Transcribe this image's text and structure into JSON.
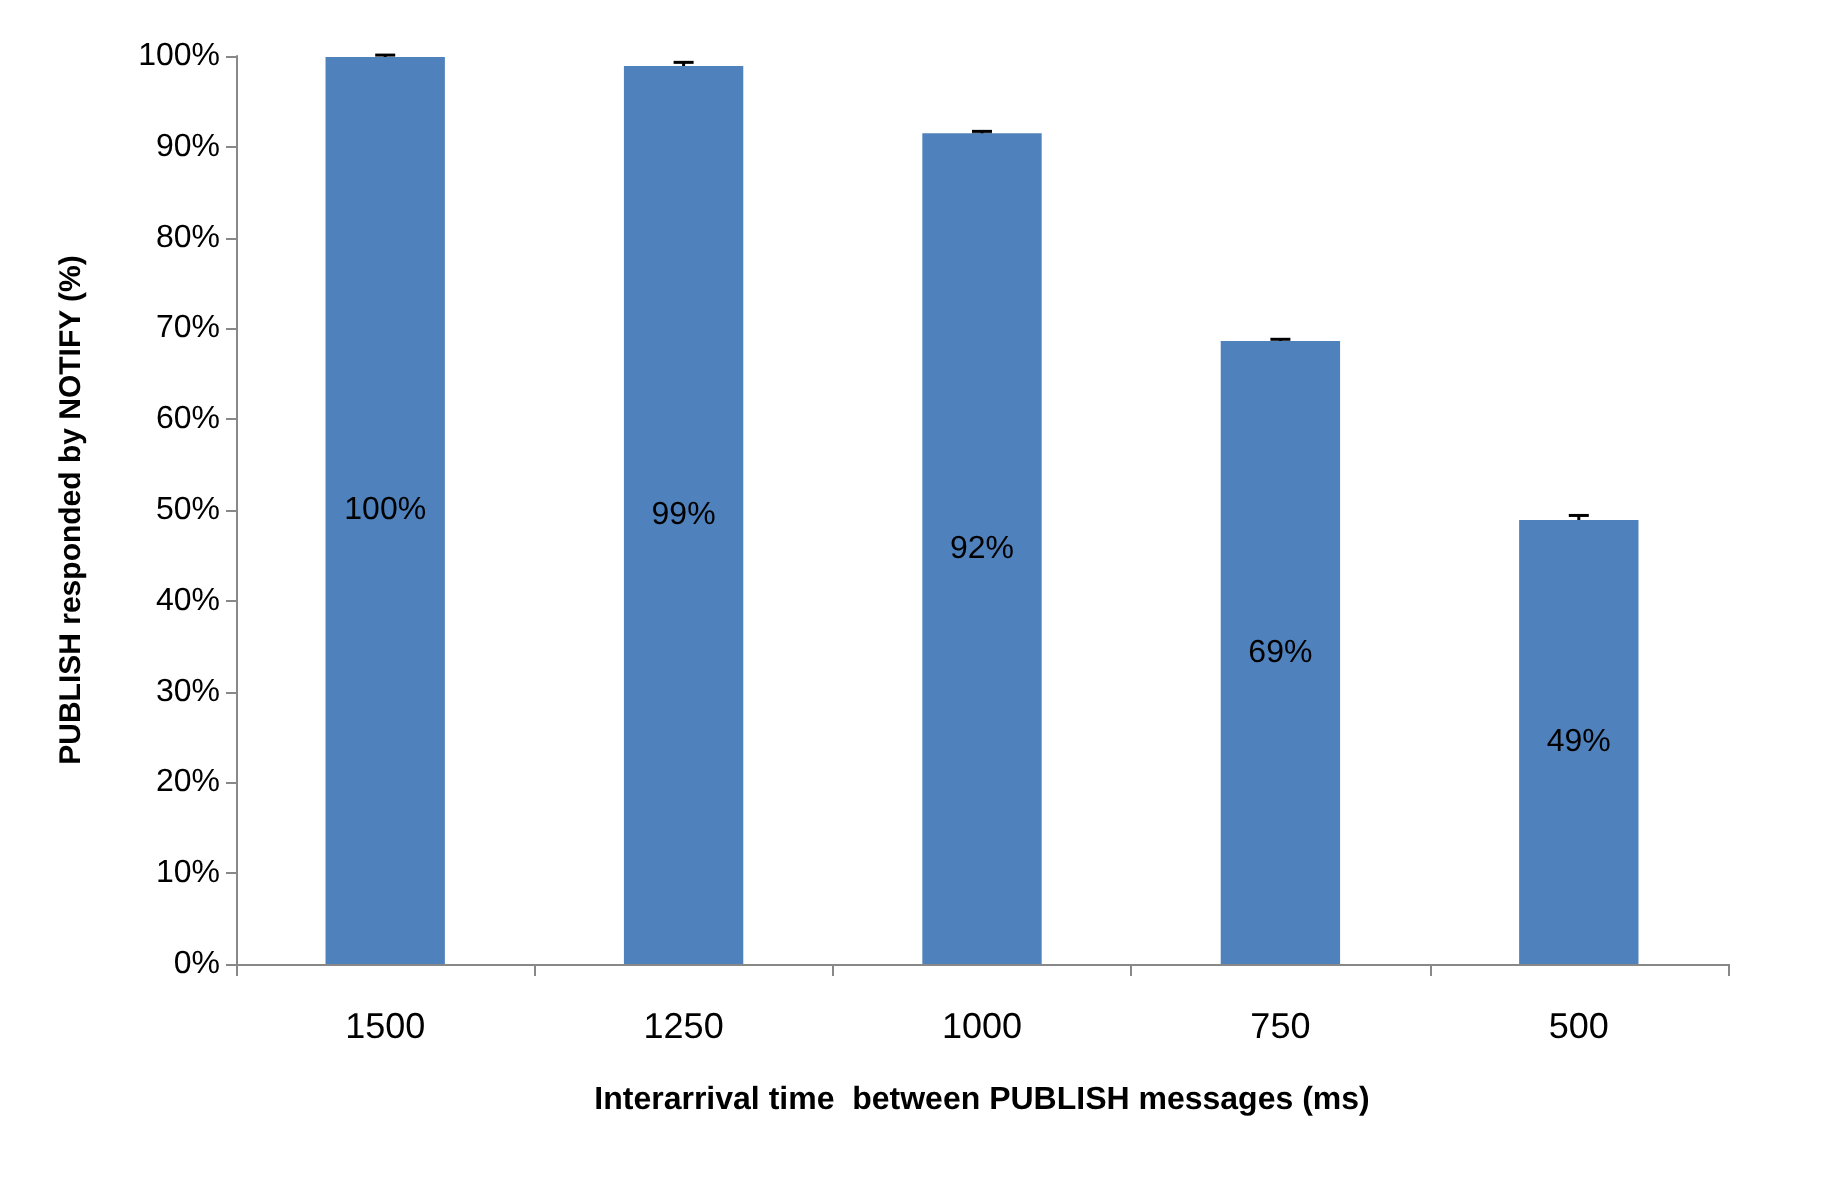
{
  "chart_data": {
    "type": "bar",
    "xlabel": "Interarrival time  between PUBLISH messages (ms)",
    "ylabel": "PUBLISH responded by NOTIFY (%)",
    "categories": [
      "1500",
      "1250",
      "1000",
      "750",
      "500"
    ],
    "values": [
      99.9,
      98.9,
      91.5,
      68.6,
      48.9
    ],
    "errors": [
      0.2,
      0.4,
      0.2,
      0.2,
      0.5
    ],
    "value_labels": [
      "100%",
      "99%",
      "92%",
      "69%",
      "49%"
    ],
    "color": "#4f81bd",
    "ylim": [
      0,
      100
    ],
    "yticks": [
      {
        "value": 0,
        "label": "0%"
      },
      {
        "value": 10,
        "label": "10%"
      },
      {
        "value": 20,
        "label": "20%"
      },
      {
        "value": 30,
        "label": "30%"
      },
      {
        "value": 40,
        "label": "40%"
      },
      {
        "value": 50,
        "label": "50%"
      },
      {
        "value": 60,
        "label": "60%"
      },
      {
        "value": 70,
        "label": "70%"
      },
      {
        "value": 80,
        "label": "80%"
      },
      {
        "value": 90,
        "label": "90%"
      },
      {
        "value": 100,
        "label": "100%"
      }
    ],
    "grid": false
  }
}
